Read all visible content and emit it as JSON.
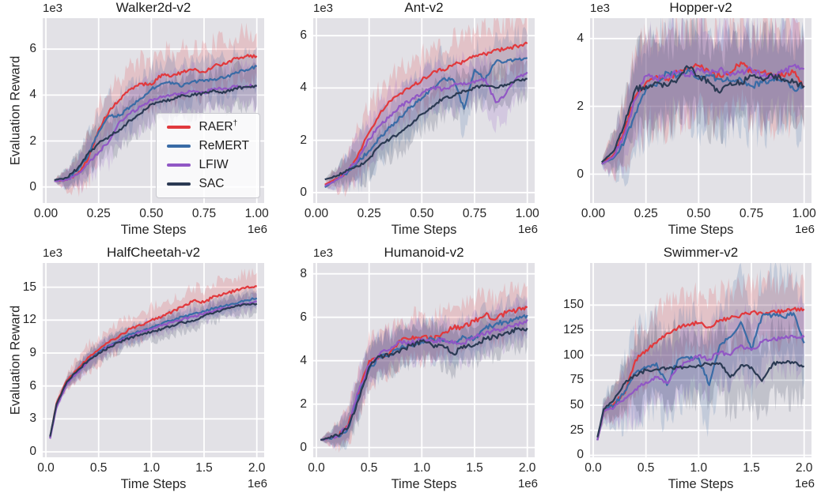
{
  "figure": {
    "ylabel": "Evaluation Reward",
    "background": "#ffffff",
    "axes_background": "#e2e1e6",
    "grid_color": "#ffffff",
    "text_color": "#262626"
  },
  "legend": {
    "entries": [
      {
        "label": "RAER",
        "suffix": "†",
        "color": "#e1393d"
      },
      {
        "label": "ReMERT",
        "suffix": "",
        "color": "#3a6ca6"
      },
      {
        "label": "LFIW",
        "suffix": "",
        "color": "#9157c5"
      },
      {
        "label": "SAC",
        "suffix": "",
        "color": "#2b3a53"
      }
    ]
  },
  "chart_data": [
    {
      "type": "line",
      "title": "Walker2d-v2",
      "xlabel": "Time Steps",
      "x_offset": "1e6",
      "y_offset": "1e3",
      "xlim": [
        -0.015,
        1.035
      ],
      "ylim": [
        -0.7,
        7.35
      ],
      "xticks": [
        0,
        0.25,
        0.5,
        0.75,
        1.0
      ],
      "xtick_labels": [
        "0.00",
        "0.25",
        "0.50",
        "0.75",
        "1.00"
      ],
      "yticks": [
        0,
        2,
        4,
        6
      ],
      "ytick_labels": [
        "0",
        "2",
        "4",
        "6"
      ],
      "x": [
        0.04,
        0.1,
        0.15,
        0.2,
        0.25,
        0.3,
        0.35,
        0.4,
        0.45,
        0.5,
        0.55,
        0.6,
        0.65,
        0.7,
        0.75,
        0.8,
        0.85,
        0.9,
        0.95,
        1.0
      ],
      "series": [
        {
          "name": "RAER†",
          "color": "#e1393d",
          "band": 1.0,
          "wiggle": 0.07,
          "y": [
            0.25,
            0.3,
            0.55,
            1.2,
            2.5,
            3.3,
            3.8,
            4.25,
            4.5,
            4.45,
            4.9,
            4.85,
            5.0,
            5.1,
            5.0,
            5.3,
            5.35,
            5.6,
            5.7,
            5.7
          ]
        },
        {
          "name": "ReMERT",
          "color": "#3a6ca6",
          "band": 0.85,
          "wiggle": 0.07,
          "y": [
            0.25,
            0.35,
            0.7,
            1.35,
            2.4,
            3.1,
            3.1,
            3.5,
            3.85,
            4.25,
            4.5,
            4.55,
            4.4,
            4.6,
            4.6,
            4.7,
            4.75,
            5.0,
            5.1,
            5.25
          ]
        },
        {
          "name": "LFIW",
          "color": "#9157c5",
          "band": 0.9,
          "wiggle": 0.07,
          "y": [
            0.25,
            0.3,
            0.55,
            1.0,
            1.5,
            2.0,
            2.85,
            3.2,
            3.5,
            3.8,
            3.9,
            4.0,
            4.1,
            4.2,
            4.1,
            4.3,
            4.3,
            4.35,
            4.4,
            4.4
          ]
        },
        {
          "name": "SAC",
          "color": "#2b3a53",
          "band": 0.8,
          "wiggle": 0.07,
          "y": [
            0.3,
            0.4,
            0.8,
            1.45,
            1.9,
            2.2,
            2.5,
            2.9,
            3.2,
            3.6,
            3.7,
            3.8,
            4.0,
            4.0,
            4.1,
            4.2,
            4.1,
            4.3,
            4.35,
            4.4
          ]
        }
      ]
    },
    {
      "type": "line",
      "title": "Ant-v2",
      "xlabel": "Time Steps",
      "x_offset": "1e6",
      "y_offset": "1e3",
      "xlim": [
        -0.015,
        1.035
      ],
      "ylim": [
        -0.4,
        6.67
      ],
      "xticks": [
        0,
        0.25,
        0.5,
        0.75,
        1.0
      ],
      "xtick_labels": [
        "0.00",
        "0.25",
        "0.50",
        "0.75",
        "1.00"
      ],
      "yticks": [
        0,
        2,
        4,
        6
      ],
      "ytick_labels": [
        "0",
        "2",
        "4",
        "6"
      ],
      "x": [
        0.04,
        0.1,
        0.15,
        0.2,
        0.25,
        0.3,
        0.35,
        0.4,
        0.45,
        0.5,
        0.55,
        0.6,
        0.65,
        0.7,
        0.75,
        0.8,
        0.85,
        0.9,
        0.95,
        1.0
      ],
      "series": [
        {
          "name": "RAER†",
          "color": "#e1393d",
          "band": 0.95,
          "wiggle": 0.07,
          "y": [
            0.3,
            0.55,
            0.8,
            1.5,
            2.3,
            3.0,
            3.5,
            3.8,
            4.05,
            4.3,
            4.6,
            4.7,
            4.9,
            5.0,
            5.2,
            5.3,
            5.45,
            5.5,
            5.6,
            5.7
          ]
        },
        {
          "name": "ReMERT",
          "color": "#3a6ca6",
          "band": 0.9,
          "wiggle": 0.07,
          "y": [
            0.2,
            0.5,
            0.8,
            1.2,
            1.6,
            2.1,
            2.5,
            2.9,
            3.3,
            3.6,
            4.0,
            4.35,
            4.3,
            3.2,
            4.7,
            4.3,
            5.0,
            5.0,
            5.1,
            5.15
          ]
        },
        {
          "name": "LFIW",
          "color": "#9157c5",
          "band": 0.85,
          "wiggle": 0.07,
          "y": [
            0.25,
            0.5,
            0.85,
            1.3,
            2.05,
            2.55,
            2.95,
            3.3,
            3.55,
            3.8,
            4.0,
            3.95,
            4.1,
            4.2,
            4.2,
            4.35,
            3.45,
            3.8,
            4.4,
            4.6
          ]
        },
        {
          "name": "SAC",
          "color": "#2b3a53",
          "band": 0.7,
          "wiggle": 0.06,
          "y": [
            0.5,
            0.65,
            0.85,
            1.0,
            1.3,
            1.8,
            2.05,
            2.3,
            2.6,
            3.0,
            3.3,
            3.6,
            3.7,
            3.9,
            4.0,
            4.1,
            4.0,
            4.1,
            4.3,
            4.35
          ]
        }
      ]
    },
    {
      "type": "line",
      "title": "Hopper-v2",
      "xlabel": "Time Steps",
      "x_offset": "1e6",
      "y_offset": "1e3",
      "xlim": [
        -0.015,
        1.035
      ],
      "ylim": [
        -0.85,
        4.6
      ],
      "xticks": [
        0,
        0.25,
        0.5,
        0.75,
        1.0
      ],
      "xtick_labels": [
        "0.00",
        "0.25",
        "0.50",
        "0.75",
        "1.00"
      ],
      "yticks": [
        0,
        2,
        4
      ],
      "ytick_labels": [
        "0",
        "2",
        "4"
      ],
      "x": [
        0.04,
        0.1,
        0.15,
        0.2,
        0.25,
        0.3,
        0.35,
        0.4,
        0.45,
        0.5,
        0.55,
        0.6,
        0.65,
        0.7,
        0.75,
        0.8,
        0.85,
        0.9,
        0.95,
        1.0
      ],
      "series": [
        {
          "name": "RAER†",
          "color": "#e1393d",
          "band": 1.3,
          "wiggle": 0.09,
          "y": [
            0.3,
            0.6,
            1.3,
            2.3,
            2.7,
            2.9,
            2.8,
            3.0,
            3.1,
            3.2,
            3.0,
            2.9,
            3.0,
            3.3,
            3.0,
            3.0,
            2.9,
            2.9,
            3.0,
            2.6
          ]
        },
        {
          "name": "ReMERT",
          "color": "#3a6ca6",
          "band": 1.35,
          "wiggle": 0.09,
          "y": [
            0.3,
            0.5,
            1.0,
            1.8,
            2.5,
            2.6,
            3.0,
            2.9,
            3.1,
            2.8,
            2.9,
            2.8,
            2.75,
            2.8,
            2.6,
            2.7,
            2.8,
            2.8,
            2.5,
            2.6
          ]
        },
        {
          "name": "LFIW",
          "color": "#9157c5",
          "band": 1.2,
          "wiggle": 0.09,
          "y": [
            0.3,
            0.55,
            1.2,
            2.2,
            2.9,
            2.8,
            2.9,
            3.0,
            2.9,
            3.1,
            3.0,
            3.1,
            2.9,
            3.0,
            3.1,
            2.9,
            2.9,
            3.0,
            3.2,
            3.1
          ]
        },
        {
          "name": "SAC",
          "color": "#2b3a53",
          "band": 1.2,
          "wiggle": 0.09,
          "y": [
            0.35,
            0.7,
            1.5,
            2.5,
            2.6,
            2.7,
            2.6,
            2.8,
            3.15,
            2.9,
            2.7,
            2.4,
            2.7,
            2.7,
            2.9,
            2.8,
            2.9,
            2.8,
            2.7,
            2.6
          ]
        }
      ]
    },
    {
      "type": "line",
      "title": "HalfCheetah-v2",
      "xlabel": "Time Steps",
      "x_offset": "1e6",
      "y_offset": "1e3",
      "xlim": [
        -0.03,
        2.07
      ],
      "ylim": [
        -0.5,
        17.2
      ],
      "xticks": [
        0,
        0.5,
        1.0,
        1.5,
        2.0
      ],
      "xtick_labels": [
        "0.0",
        "0.5",
        "1.0",
        "1.5",
        "2.0"
      ],
      "yticks": [
        0,
        3,
        6,
        9,
        12,
        15
      ],
      "ytick_labels": [
        "0",
        "3",
        "6",
        "9",
        "12",
        "15"
      ],
      "x": [
        0.04,
        0.1,
        0.2,
        0.3,
        0.4,
        0.5,
        0.6,
        0.7,
        0.8,
        0.9,
        1.0,
        1.1,
        1.2,
        1.3,
        1.4,
        1.5,
        1.6,
        1.7,
        1.8,
        1.9,
        2.0
      ],
      "series": [
        {
          "name": "RAER†",
          "color": "#e1393d",
          "band": 1.2,
          "wiggle": 0.12,
          "y": [
            1.3,
            4.4,
            6.5,
            7.5,
            8.6,
            9.3,
            10.0,
            10.6,
            11.2,
            11.5,
            12.0,
            12.3,
            12.8,
            13.2,
            13.8,
            13.6,
            14.2,
            14.4,
            14.7,
            15.0,
            15.1
          ]
        },
        {
          "name": "ReMERT",
          "color": "#3a6ca6",
          "band": 0.75,
          "wiggle": 0.1,
          "y": [
            1.3,
            4.2,
            6.3,
            7.3,
            8.3,
            9.1,
            9.7,
            10.2,
            10.7,
            11.0,
            11.3,
            11.7,
            12.0,
            12.3,
            12.6,
            12.8,
            13.1,
            13.3,
            13.5,
            13.8,
            14.0
          ]
        },
        {
          "name": "LFIW",
          "color": "#9157c5",
          "band": 0.75,
          "wiggle": 0.1,
          "y": [
            1.2,
            4.0,
            6.2,
            7.2,
            8.2,
            9.0,
            9.6,
            10.1,
            10.5,
            10.9,
            11.2,
            11.5,
            11.8,
            12.1,
            12.3,
            12.6,
            12.9,
            13.1,
            13.3,
            13.5,
            13.7
          ]
        },
        {
          "name": "SAC",
          "color": "#2b3a53",
          "band": 0.85,
          "wiggle": 0.1,
          "y": [
            1.4,
            4.3,
            6.4,
            7.4,
            8.3,
            9.0,
            9.5,
            10.0,
            10.4,
            10.7,
            10.9,
            11.2,
            11.5,
            11.8,
            11.9,
            12.4,
            12.7,
            13.0,
            13.3,
            13.4,
            13.5
          ]
        }
      ]
    },
    {
      "type": "line",
      "title": "Humanoid-v2",
      "xlabel": "Time Steps",
      "x_offset": "1e6",
      "y_offset": "1e3",
      "xlim": [
        -0.03,
        2.07
      ],
      "ylim": [
        -0.45,
        8.5
      ],
      "xticks": [
        0,
        0.5,
        1.0,
        1.5,
        2.0
      ],
      "xtick_labels": [
        "0.0",
        "0.5",
        "1.0",
        "1.5",
        "2.0"
      ],
      "yticks": [
        0,
        2,
        4,
        6,
        8
      ],
      "ytick_labels": [
        "0",
        "2",
        "4",
        "6",
        "8"
      ],
      "x": [
        0.04,
        0.1,
        0.2,
        0.3,
        0.4,
        0.5,
        0.6,
        0.7,
        0.8,
        0.9,
        1.0,
        1.1,
        1.2,
        1.3,
        1.4,
        1.5,
        1.6,
        1.7,
        1.8,
        1.9,
        2.0
      ],
      "series": [
        {
          "name": "RAER†",
          "color": "#e1393d",
          "band": 1.0,
          "wiggle": 0.13,
          "y": [
            0.35,
            0.4,
            0.55,
            1.0,
            2.5,
            4.0,
            4.2,
            4.4,
            4.9,
            5.0,
            5.1,
            5.0,
            5.3,
            5.5,
            5.6,
            5.8,
            6.1,
            5.9,
            6.2,
            6.3,
            6.45
          ]
        },
        {
          "name": "ReMERT",
          "color": "#3a6ca6",
          "band": 0.85,
          "wiggle": 0.12,
          "y": [
            0.35,
            0.4,
            0.5,
            0.9,
            2.4,
            3.6,
            4.2,
            4.3,
            4.6,
            4.7,
            4.9,
            5.0,
            4.9,
            4.8,
            5.1,
            5.0,
            5.5,
            5.7,
            5.8,
            6.0,
            6.1
          ]
        },
        {
          "name": "LFIW",
          "color": "#9157c5",
          "band": 0.85,
          "wiggle": 0.12,
          "y": [
            0.35,
            0.4,
            0.5,
            1.0,
            2.6,
            3.8,
            4.3,
            4.5,
            4.9,
            4.8,
            5.0,
            4.9,
            5.0,
            4.8,
            4.8,
            5.1,
            5.2,
            5.4,
            5.5,
            5.7,
            5.9
          ]
        },
        {
          "name": "SAC",
          "color": "#2b3a53",
          "band": 0.85,
          "wiggle": 0.11,
          "y": [
            0.35,
            0.42,
            0.55,
            0.9,
            2.2,
            3.7,
            4.2,
            4.3,
            4.5,
            4.7,
            4.9,
            4.7,
            4.7,
            4.3,
            4.7,
            4.7,
            5.0,
            5.1,
            5.3,
            5.45,
            5.5
          ]
        }
      ]
    },
    {
      "type": "line",
      "title": "Swimmer-v2",
      "xlabel": "Time Steps",
      "x_offset": "1e6",
      "y_offset": "",
      "xlim": [
        -0.03,
        2.07
      ],
      "ylim": [
        -2,
        192
      ],
      "xticks": [
        0,
        0.5,
        1.0,
        1.5,
        2.0
      ],
      "xtick_labels": [
        "0.0",
        "0.5",
        "1.0",
        "1.5",
        "2.0"
      ],
      "yticks": [
        0,
        25,
        50,
        75,
        100,
        125,
        150
      ],
      "ytick_labels": [
        "0",
        "25",
        "50",
        "75",
        "100",
        "125",
        "150"
      ],
      "x": [
        0.04,
        0.1,
        0.2,
        0.3,
        0.4,
        0.5,
        0.6,
        0.7,
        0.8,
        0.9,
        1.0,
        1.1,
        1.2,
        1.3,
        1.4,
        1.5,
        1.6,
        1.7,
        1.8,
        1.9,
        2.0
      ],
      "series": [
        {
          "name": "RAER†",
          "color": "#e1393d",
          "band": 28,
          "wiggle": 2.0,
          "y": [
            15,
            44,
            52,
            62,
            95,
            105,
            112,
            122,
            127,
            131,
            132,
            128,
            135,
            137,
            140,
            143,
            142,
            144,
            143,
            146,
            146
          ]
        },
        {
          "name": "ReMERT",
          "color": "#3a6ca6",
          "band": 40,
          "wiggle": 2.2,
          "y": [
            15,
            46,
            50,
            64,
            82,
            87,
            92,
            70,
            95,
            98,
            97,
            70,
            110,
            118,
            133,
            105,
            139,
            140,
            138,
            142,
            112
          ]
        },
        {
          "name": "LFIW",
          "color": "#9157c5",
          "band": 30,
          "wiggle": 2.0,
          "y": [
            15,
            44,
            48,
            57,
            66,
            73,
            78,
            72,
            88,
            94,
            100,
            96,
            103,
            100,
            110,
            105,
            113,
            116,
            117,
            118,
            118
          ]
        },
        {
          "name": "SAC",
          "color": "#2b3a53",
          "band": 33,
          "wiggle": 1.8,
          "y": [
            18,
            46,
            56,
            72,
            80,
            85,
            86,
            87,
            88,
            88,
            90,
            91,
            92,
            78,
            90,
            88,
            74,
            91,
            93,
            92,
            89
          ]
        }
      ]
    }
  ]
}
